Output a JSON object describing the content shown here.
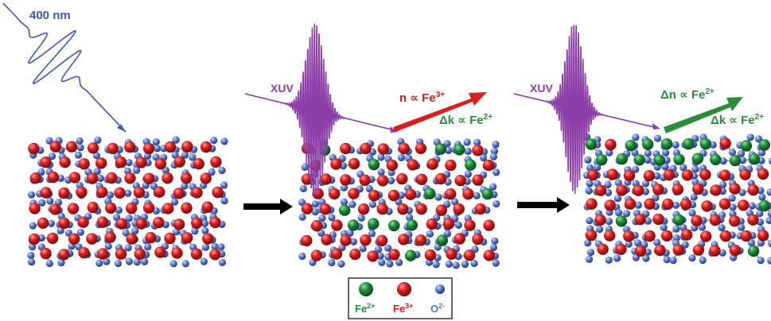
{
  "labels": {
    "pump": "400 nm",
    "probe_1": "XUV",
    "probe_2": "XUV",
    "panel2_n_main": "n ∝ Fe",
    "panel2_n_sup": "3+",
    "panel2_k_main": "Δk ∝ Fe",
    "panel2_k_sup": "2+",
    "panel3_n_main": "Δn ∝ Fe",
    "panel3_n_sup": "2+",
    "panel3_k_main": "Δk ∝ Fe",
    "panel3_k_sup": "2+"
  },
  "legend": [
    {
      "base": "Fe",
      "sup": "2+",
      "color": "#1e8a3a"
    },
    {
      "base": "Fe",
      "sup": "3+",
      "color": "#cc1f1f"
    },
    {
      "base": "O",
      "sup": "2-",
      "color": "#5a78c8"
    }
  ],
  "colors": {
    "pump": "#3d57b3",
    "xuv": "#8c3fa6",
    "arrow_red": "#d81f1f",
    "arrow_green": "#2e8b3a",
    "fe2": "#1e8a3a",
    "fe3": "#cc1f1f",
    "o2": "#5a78c8",
    "bond": "#9a9a9a",
    "process_arrow": "#000000"
  },
  "icons": [
    "pump-pulse-icon",
    "xuv-pulse-icon",
    "process-arrow-icon",
    "reflection-arrow-icon"
  ]
}
